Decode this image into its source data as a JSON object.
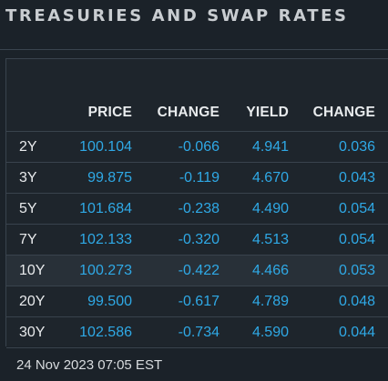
{
  "header": {
    "title": "TREASURIES AND SWAP RATES"
  },
  "table": {
    "columns": [
      "",
      "PRICE",
      "CHANGE",
      "YIELD",
      "CHANGE"
    ],
    "rows": [
      {
        "tenor": "2Y",
        "price": "100.104",
        "price_change": "-0.066",
        "yield": "4.941",
        "yield_change": "0.036"
      },
      {
        "tenor": "3Y",
        "price": "99.875",
        "price_change": "-0.119",
        "yield": "4.670",
        "yield_change": "0.043"
      },
      {
        "tenor": "5Y",
        "price": "101.684",
        "price_change": "-0.238",
        "yield": "4.490",
        "yield_change": "0.054"
      },
      {
        "tenor": "7Y",
        "price": "102.133",
        "price_change": "-0.320",
        "yield": "4.513",
        "yield_change": "0.054"
      },
      {
        "tenor": "10Y",
        "price": "100.273",
        "price_change": "-0.422",
        "yield": "4.466",
        "yield_change": "0.053"
      },
      {
        "tenor": "20Y",
        "price": "99.500",
        "price_change": "-0.617",
        "yield": "4.789",
        "yield_change": "0.048"
      },
      {
        "tenor": "30Y",
        "price": "102.586",
        "price_change": "-0.734",
        "yield": "4.590",
        "yield_change": "0.044"
      }
    ],
    "highlighted_row": "10Y"
  },
  "footer": {
    "timestamp": "24 Nov 2023 07:05 EST"
  },
  "colors": {
    "background": "#1b2229",
    "value_text": "#2fa9e6",
    "label_text": "#e8eaec",
    "row_highlight": "#283038"
  }
}
